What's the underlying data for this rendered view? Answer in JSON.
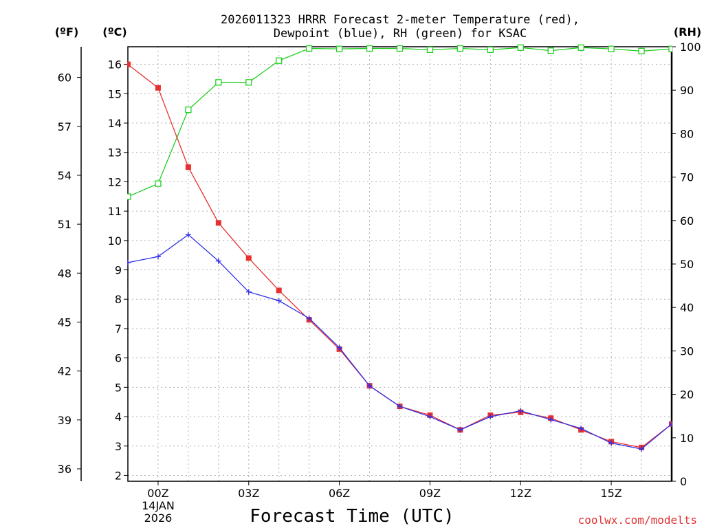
{
  "chart_data": {
    "type": "line",
    "title_line1": "2026011323 HRRR Forecast 2-meter Temperature (red),",
    "title_line2": "Dewpoint (blue), RH (green) for KSAC",
    "xlabel": "Forecast Time (UTC)",
    "credit": "coolwx.com/modelts",
    "unit_left_f": "(ºF)",
    "unit_left_c": "(ºC)",
    "unit_right": "(RH)",
    "x_hours": [
      -1,
      0,
      1,
      2,
      3,
      4,
      5,
      6,
      7,
      8,
      9,
      10,
      11,
      12,
      13,
      14,
      15,
      16,
      17
    ],
    "x_range": [
      -1,
      17
    ],
    "x_ticks": [
      {
        "hour": 0,
        "label": "00Z",
        "sub1": "14JAN",
        "sub2": "2026"
      },
      {
        "hour": 3,
        "label": "03Z"
      },
      {
        "hour": 6,
        "label": "06Z"
      },
      {
        "hour": 9,
        "label": "09Z"
      },
      {
        "hour": 12,
        "label": "12Z"
      },
      {
        "hour": 15,
        "label": "15Z"
      }
    ],
    "ylim_c": [
      1.8,
      16.6
    ],
    "y_ticks_c": [
      "2",
      "3",
      "4",
      "5",
      "6",
      "7",
      "8",
      "9",
      "10",
      "11",
      "12",
      "13",
      "14",
      "15",
      "16"
    ],
    "y_ticks_f": [
      "36",
      "39",
      "42",
      "45",
      "48",
      "51",
      "54",
      "57",
      "60"
    ],
    "ylim_rh": [
      0,
      100
    ],
    "y_ticks_rh": [
      "0",
      "10",
      "20",
      "30",
      "40",
      "50",
      "60",
      "70",
      "80",
      "90",
      "100"
    ],
    "series": [
      {
        "name": "Temperature",
        "color": "#e83030",
        "values_c": [
          16.0,
          15.2,
          12.5,
          10.6,
          9.4,
          8.3,
          7.3,
          6.3,
          5.05,
          4.35,
          4.05,
          3.55,
          4.05,
          4.15,
          3.95,
          3.55,
          3.15,
          2.95,
          3.75
        ]
      },
      {
        "name": "Dewpoint",
        "color": "#3030e8",
        "values_c": [
          9.25,
          9.45,
          10.2,
          9.3,
          8.25,
          7.95,
          7.35,
          6.35,
          5.05,
          4.35,
          4.0,
          3.55,
          4.0,
          4.2,
          3.9,
          3.6,
          3.1,
          2.9,
          3.75
        ]
      },
      {
        "name": "RH",
        "color": "#20d020",
        "values_rh": [
          65.5,
          68.5,
          85.5,
          91.8,
          91.8,
          96.8,
          99.6,
          99.5,
          99.6,
          99.6,
          99.3,
          99.6,
          99.3,
          99.8,
          99.1,
          99.8,
          99.5,
          99.0,
          99.5
        ]
      }
    ]
  }
}
